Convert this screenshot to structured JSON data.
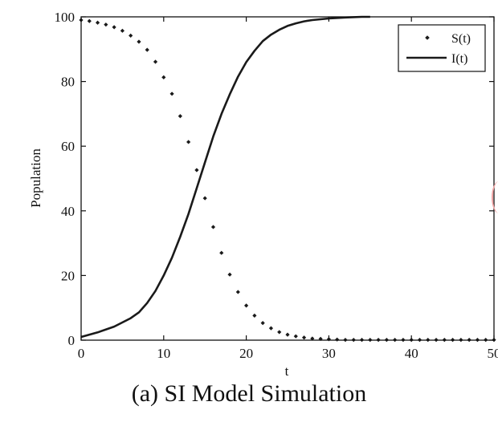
{
  "caption": {
    "label": "(a)",
    "title": "SI Model Simulation"
  },
  "chart_data": {
    "type": "line",
    "title": "",
    "xlabel": "t",
    "ylabel": "Population",
    "xlim": [
      0,
      50
    ],
    "ylim": [
      0,
      100
    ],
    "xticks": [
      0,
      10,
      20,
      30,
      40,
      50
    ],
    "yticks": [
      0,
      20,
      40,
      60,
      80,
      100
    ],
    "grid": false,
    "legend_position": "top-right",
    "series": [
      {
        "name": "S(t)",
        "style": "dotted-markers",
        "color": "#1a1a1a",
        "x": [
          0,
          1,
          2,
          3,
          4,
          5,
          6,
          7,
          8,
          9,
          10,
          11,
          12,
          13,
          14,
          15,
          16,
          17,
          18,
          19,
          20,
          21,
          22,
          23,
          24,
          25,
          26,
          27,
          28,
          29,
          30,
          31,
          32,
          33,
          34,
          35,
          36,
          37,
          38,
          39,
          40,
          41,
          42,
          43,
          44,
          45,
          46,
          47,
          48,
          49,
          50
        ],
        "values": [
          99.0,
          98.7,
          98.2,
          97.6,
          96.8,
          95.7,
          94.2,
          92.3,
          89.8,
          86.1,
          81.3,
          76.2,
          69.3,
          61.3,
          52.6,
          43.9,
          35.0,
          27.0,
          20.3,
          14.9,
          10.7,
          7.6,
          5.3,
          3.7,
          2.5,
          1.7,
          1.2,
          0.8,
          0.5,
          0.4,
          0.3,
          0.2,
          0.1,
          0.1,
          0.1,
          0.1,
          0.1,
          0.1,
          0.1,
          0.1,
          0.1,
          0.1,
          0.1,
          0.1,
          0.1,
          0.1,
          0.1,
          0.1,
          0.1,
          0.1,
          0.1
        ]
      },
      {
        "name": "I(t)",
        "style": "solid-line",
        "color": "#1a1a1a",
        "x": [
          0,
          2,
          4,
          6,
          7,
          8,
          9,
          10,
          11,
          12,
          13,
          14,
          15,
          16,
          17,
          18,
          19,
          20,
          21,
          22,
          23,
          24,
          25,
          26,
          27,
          28,
          30,
          32,
          34,
          35
        ],
        "values": [
          1.0,
          2.4,
          4.2,
          6.8,
          8.6,
          11.5,
          15.2,
          20.0,
          25.5,
          32.0,
          39.0,
          47.0,
          55.0,
          63.0,
          70.0,
          76.0,
          81.5,
          86.0,
          89.5,
          92.5,
          94.5,
          96.0,
          97.2,
          98.0,
          98.6,
          99.0,
          99.5,
          99.8,
          100.0,
          100.0
        ]
      }
    ]
  }
}
